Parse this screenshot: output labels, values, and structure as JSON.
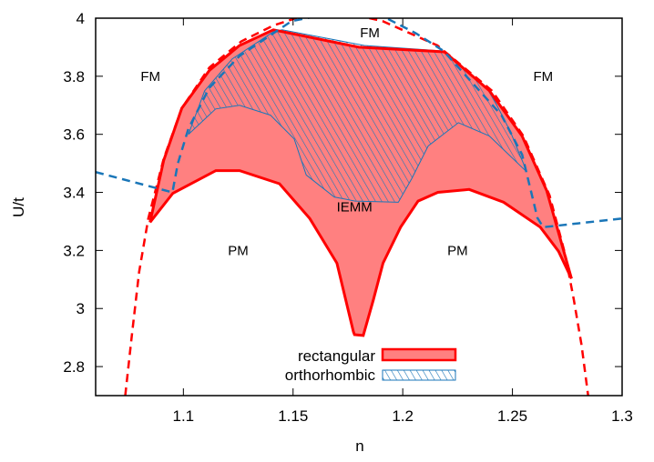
{
  "chart_data": {
    "type": "area",
    "title": "",
    "xlabel": "n",
    "ylabel": "U/t",
    "xlim": [
      1.06,
      1.3
    ],
    "ylim": [
      2.7,
      4.0
    ],
    "xticks": [
      "1.1",
      "1.15",
      "1.2",
      "1.25",
      "1.3"
    ],
    "xtick_values": [
      1.1,
      1.15,
      1.2,
      1.25,
      1.3
    ],
    "yticks": [
      "2.8",
      "3",
      "3.2",
      "3.4",
      "3.6",
      "3.8",
      "4"
    ],
    "ytick_values": [
      2.8,
      3.0,
      3.2,
      3.4,
      3.6,
      3.8,
      4.0
    ],
    "grid": false,
    "legend_placement": "bottom-center",
    "colors": {
      "red_line": "#ff0000",
      "red_fill": "#ff8080",
      "blue": "#1a76b8"
    },
    "series": [
      {
        "name": "rectangular",
        "style": "filled region, solid red border",
        "upper": [
          [
            1.0848,
            3.297
          ],
          [
            1.091,
            3.51
          ],
          [
            1.0993,
            3.69
          ],
          [
            1.1118,
            3.82
          ],
          [
            1.1256,
            3.906
          ],
          [
            1.141,
            3.96
          ],
          [
            1.18,
            3.9
          ],
          [
            1.219,
            3.884
          ],
          [
            1.2395,
            3.75
          ],
          [
            1.2544,
            3.594
          ],
          [
            1.2656,
            3.406
          ],
          [
            1.2769,
            3.103
          ]
        ],
        "lower": [
          [
            1.0848,
            3.297
          ],
          [
            1.0952,
            3.397
          ],
          [
            1.1148,
            3.475
          ],
          [
            1.1256,
            3.475
          ],
          [
            1.1438,
            3.43
          ],
          [
            1.1576,
            3.31
          ],
          [
            1.17,
            3.156
          ],
          [
            1.1775,
            2.92
          ],
          [
            1.178,
            2.91
          ],
          [
            1.182,
            2.907
          ],
          [
            1.1866,
            3.03
          ],
          [
            1.191,
            3.156
          ],
          [
            1.199,
            3.28
          ],
          [
            1.207,
            3.37
          ],
          [
            1.216,
            3.4
          ],
          [
            1.2303,
            3.41
          ],
          [
            1.246,
            3.366
          ],
          [
            1.2627,
            3.28
          ],
          [
            1.271,
            3.197
          ],
          [
            1.2769,
            3.103
          ]
        ]
      },
      {
        "name": "orthorhombic",
        "style": "hatched blue region",
        "upper": [
          [
            1.1023,
            3.6
          ],
          [
            1.1097,
            3.75
          ],
          [
            1.1223,
            3.86
          ],
          [
            1.141,
            3.953
          ],
          [
            1.145,
            3.96
          ],
          [
            1.1825,
            3.906
          ],
          [
            1.2186,
            3.887
          ],
          [
            1.2395,
            3.75
          ],
          [
            1.249,
            3.61
          ],
          [
            1.2566,
            3.47
          ]
        ],
        "lower": [
          [
            1.1023,
            3.6
          ],
          [
            1.1147,
            3.6875
          ],
          [
            1.1256,
            3.7
          ],
          [
            1.1397,
            3.666
          ],
          [
            1.1505,
            3.584
          ],
          [
            1.156,
            3.46
          ],
          [
            1.1688,
            3.384
          ],
          [
            1.1783,
            3.37
          ],
          [
            1.198,
            3.366
          ],
          [
            1.2041,
            3.447
          ],
          [
            1.2116,
            3.56
          ],
          [
            1.2254,
            3.64
          ],
          [
            1.2395,
            3.594
          ],
          [
            1.2566,
            3.47
          ]
        ]
      }
    ],
    "dashed_lines": [
      {
        "color": "red",
        "points": [
          [
            1.0735,
            2.7
          ],
          [
            1.0765,
            2.906
          ],
          [
            1.0798,
            3.125
          ],
          [
            1.084,
            3.31
          ],
          [
            1.091,
            3.516
          ],
          [
            1.0993,
            3.69
          ],
          [
            1.1118,
            3.83
          ],
          [
            1.1264,
            3.92
          ],
          [
            1.141,
            3.975
          ],
          [
            1.1513,
            4.0
          ],
          [
            1.17,
            4.025
          ],
          [
            1.1908,
            3.99
          ],
          [
            1.2158,
            3.906
          ],
          [
            1.2407,
            3.75
          ],
          [
            1.255,
            3.594
          ],
          [
            1.2669,
            3.39
          ],
          [
            1.274,
            3.1875
          ],
          [
            1.278,
            3.03
          ],
          [
            1.2815,
            2.875
          ],
          [
            1.2845,
            2.7
          ]
        ]
      },
      {
        "color": "blue",
        "points": [
          [
            1.06,
            3.47
          ],
          [
            1.095,
            3.4
          ],
          [
            1.0975,
            3.5
          ],
          [
            1.1023,
            3.62
          ],
          [
            1.1118,
            3.76
          ],
          [
            1.1256,
            3.87
          ],
          [
            1.1493,
            3.99
          ],
          [
            1.17,
            4.02
          ],
          [
            1.19,
            4.01
          ],
          [
            1.2062,
            3.947
          ],
          [
            1.2186,
            3.887
          ],
          [
            1.245,
            3.666
          ],
          [
            1.2544,
            3.53
          ],
          [
            1.2614,
            3.3125
          ],
          [
            1.264,
            3.28
          ],
          [
            1.3,
            3.31
          ]
        ]
      }
    ],
    "annotations": [
      {
        "text": "FM",
        "x": 1.085,
        "y": 3.8
      },
      {
        "text": "FM",
        "x": 1.185,
        "y": 3.95
      },
      {
        "text": "FM",
        "x": 1.264,
        "y": 3.8
      },
      {
        "text": "PM",
        "x": 1.125,
        "y": 3.2
      },
      {
        "text": "PM",
        "x": 1.225,
        "y": 3.2
      },
      {
        "text": "IEMM",
        "x": 1.178,
        "y": 3.35
      }
    ]
  }
}
